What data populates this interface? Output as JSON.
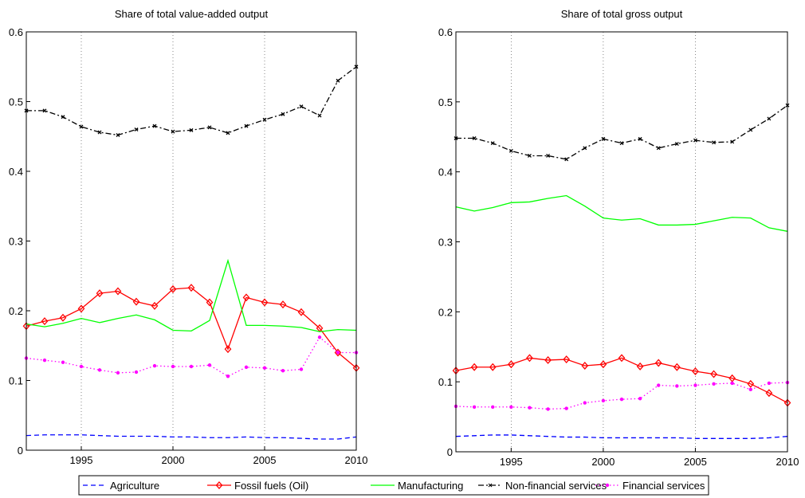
{
  "chart_data": [
    {
      "type": "line",
      "title": "Share of total value-added output",
      "x": [
        1992,
        1993,
        1994,
        1995,
        1996,
        1997,
        1998,
        1999,
        2000,
        2001,
        2002,
        2003,
        2004,
        2005,
        2006,
        2007,
        2008,
        2009,
        2010
      ],
      "xlim": [
        1992,
        2010
      ],
      "xticks": [
        1995,
        2000,
        2005,
        2010
      ],
      "ylim": [
        0,
        0.6
      ],
      "yticks": [
        0,
        0.1,
        0.2,
        0.3,
        0.4,
        0.5,
        0.6
      ],
      "grid": "x",
      "series": [
        {
          "name": "Agriculture",
          "color": "#0000ff",
          "linestyle": "dashed",
          "marker": "none",
          "values": [
            0.021,
            0.022,
            0.022,
            0.022,
            0.021,
            0.02,
            0.02,
            0.02,
            0.019,
            0.019,
            0.018,
            0.018,
            0.019,
            0.018,
            0.018,
            0.017,
            0.016,
            0.016,
            0.019
          ]
        },
        {
          "name": "Fossil fuels (Oil)",
          "color": "#ff0000",
          "linestyle": "solid",
          "marker": "diamond",
          "values": [
            0.178,
            0.185,
            0.19,
            0.203,
            0.225,
            0.228,
            0.213,
            0.207,
            0.231,
            0.233,
            0.212,
            0.145,
            0.219,
            0.212,
            0.209,
            0.198,
            0.175,
            0.14,
            0.118
          ]
        },
        {
          "name": "Manufacturing",
          "color": "#00ff00",
          "linestyle": "solid",
          "marker": "none",
          "values": [
            0.181,
            0.177,
            0.182,
            0.189,
            0.183,
            0.189,
            0.194,
            0.187,
            0.172,
            0.171,
            0.186,
            0.272,
            0.179,
            0.179,
            0.178,
            0.176,
            0.17,
            0.173,
            0.172
          ]
        },
        {
          "name": "Non-financial services",
          "color": "#000000",
          "linestyle": "dashdot",
          "marker": "x",
          "values": [
            0.487,
            0.487,
            0.478,
            0.464,
            0.456,
            0.452,
            0.46,
            0.465,
            0.457,
            0.459,
            0.463,
            0.455,
            0.465,
            0.474,
            0.482,
            0.493,
            0.48,
            0.53,
            0.55
          ]
        },
        {
          "name": "Financial services",
          "color": "#ff00ff",
          "linestyle": "dotted",
          "marker": "dot",
          "values": [
            0.132,
            0.129,
            0.126,
            0.12,
            0.115,
            0.111,
            0.112,
            0.121,
            0.12,
            0.12,
            0.122,
            0.106,
            0.119,
            0.118,
            0.114,
            0.116,
            0.162,
            0.14,
            0.14
          ]
        }
      ]
    },
    {
      "type": "line",
      "title": "Share of total gross output",
      "x": [
        1992,
        1993,
        1994,
        1995,
        1996,
        1997,
        1998,
        1999,
        2000,
        2001,
        2002,
        2003,
        2004,
        2005,
        2006,
        2007,
        2008,
        2009,
        2010
      ],
      "xlim": [
        1992,
        2010
      ],
      "xticks": [
        1995,
        2000,
        2005,
        2010
      ],
      "ylim": [
        0,
        0.6
      ],
      "yticks": [
        0,
        0.1,
        0.2,
        0.3,
        0.4,
        0.5,
        0.6
      ],
      "grid": "x",
      "series": [
        {
          "color": "#0000ff",
          "linestyle": "dashed",
          "marker": "none",
          "values": [
            0.022,
            0.023,
            0.024,
            0.024,
            0.023,
            0.022,
            0.021,
            0.021,
            0.02,
            0.02,
            0.02,
            0.02,
            0.02,
            0.019,
            0.019,
            0.019,
            0.019,
            0.02,
            0.022
          ]
        },
        {
          "color": "#ff0000",
          "linestyle": "solid",
          "marker": "diamond",
          "values": [
            0.116,
            0.121,
            0.121,
            0.125,
            0.134,
            0.131,
            0.132,
            0.123,
            0.125,
            0.134,
            0.122,
            0.127,
            0.121,
            0.115,
            0.111,
            0.105,
            0.097,
            0.084,
            0.07
          ]
        },
        {
          "color": "#00ff00",
          "linestyle": "solid",
          "marker": "none",
          "values": [
            0.35,
            0.344,
            0.349,
            0.356,
            0.357,
            0.362,
            0.366,
            0.351,
            0.334,
            0.331,
            0.333,
            0.324,
            0.324,
            0.325,
            0.33,
            0.335,
            0.334,
            0.32,
            0.315
          ]
        },
        {
          "color": "#000000",
          "linestyle": "dashdot",
          "marker": "x",
          "values": [
            0.448,
            0.448,
            0.441,
            0.43,
            0.423,
            0.423,
            0.418,
            0.434,
            0.447,
            0.441,
            0.447,
            0.434,
            0.44,
            0.445,
            0.442,
            0.443,
            0.46,
            0.476,
            0.495
          ]
        },
        {
          "color": "#ff00ff",
          "linestyle": "dotted",
          "marker": "dot",
          "values": [
            0.065,
            0.064,
            0.064,
            0.064,
            0.063,
            0.061,
            0.062,
            0.07,
            0.073,
            0.075,
            0.076,
            0.095,
            0.094,
            0.095,
            0.097,
            0.098,
            0.089,
            0.098,
            0.099
          ]
        }
      ]
    }
  ]
}
